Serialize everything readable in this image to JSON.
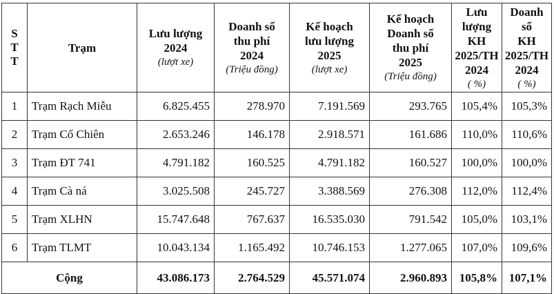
{
  "headers": {
    "stt": [
      "S",
      "T",
      "T"
    ],
    "station": "Trạm",
    "traffic_2024": [
      "Lưu lượng",
      "2024"
    ],
    "traffic_2024_unit": "(lượt xe)",
    "revenue_2024": [
      "Doanh số",
      "thu phí",
      "2024"
    ],
    "revenue_2024_unit": "(Triệu đồng)",
    "plan_traffic_2025": [
      "Kế hoạch",
      "lưu lượng",
      "2025"
    ],
    "plan_traffic_2025_unit": "(lượt xe)",
    "plan_revenue_2025": [
      "Kế hoạch",
      "Doanh số",
      "thu phí",
      "2025"
    ],
    "plan_revenue_2025_unit": "(Triệu đồng)",
    "traffic_ratio": [
      "Lưu",
      "lượng",
      "KH",
      "2025/TH",
      "2024"
    ],
    "traffic_ratio_unit": "( %)",
    "revenue_ratio": [
      "Doanh",
      "số",
      "KH",
      "2025/TH",
      "2024"
    ],
    "revenue_ratio_unit": "( %)"
  },
  "rows": [
    {
      "stt": "1",
      "station": "Trạm Rạch Miễu",
      "traffic_2024": "6.825.455",
      "revenue_2024": "278.970",
      "plan_traffic_2025": "7.191.569",
      "plan_revenue_2025": "293.765",
      "traffic_ratio": "105,4%",
      "revenue_ratio": "105,3%"
    },
    {
      "stt": "2",
      "station": "Trạm Cổ Chiên",
      "traffic_2024": "2.653.246",
      "revenue_2024": "146.178",
      "plan_traffic_2025": "2.918.571",
      "plan_revenue_2025": "161.686",
      "traffic_ratio": "110,0%",
      "revenue_ratio": "110,6%"
    },
    {
      "stt": "3",
      "station": "Trạm ĐT 741",
      "traffic_2024": "4.791.182",
      "revenue_2024": "160.525",
      "plan_traffic_2025": "4.791.182",
      "plan_revenue_2025": "160.527",
      "traffic_ratio": "100,0%",
      "revenue_ratio": "100,0%"
    },
    {
      "stt": "4",
      "station": "Trạm Cà ná",
      "traffic_2024": "3.025.508",
      "revenue_2024": "245.727",
      "plan_traffic_2025": "3.388.569",
      "plan_revenue_2025": "276.308",
      "traffic_ratio": "112,0%",
      "revenue_ratio": "112,4%"
    },
    {
      "stt": "5",
      "station": "Trạm XLHN",
      "traffic_2024": "15.747.648",
      "revenue_2024": "767.637",
      "plan_traffic_2025": "16.535.030",
      "plan_revenue_2025": "791.542",
      "traffic_ratio": "105,0%",
      "revenue_ratio": "103,1%"
    },
    {
      "stt": "6",
      "station": "Trạm TLMT",
      "traffic_2024": "10.043.134",
      "revenue_2024": "1.165.492",
      "plan_traffic_2025": "10.746.153",
      "plan_revenue_2025": "1.277.065",
      "traffic_ratio": "107,0%",
      "revenue_ratio": "109,6%"
    }
  ],
  "total": {
    "label": "Cộng",
    "traffic_2024": "43.086.173",
    "revenue_2024": "2.764.529",
    "plan_traffic_2025": "45.571.074",
    "plan_revenue_2025": "2.960.893",
    "traffic_ratio": "105,8%",
    "revenue_ratio": "107,1%"
  }
}
